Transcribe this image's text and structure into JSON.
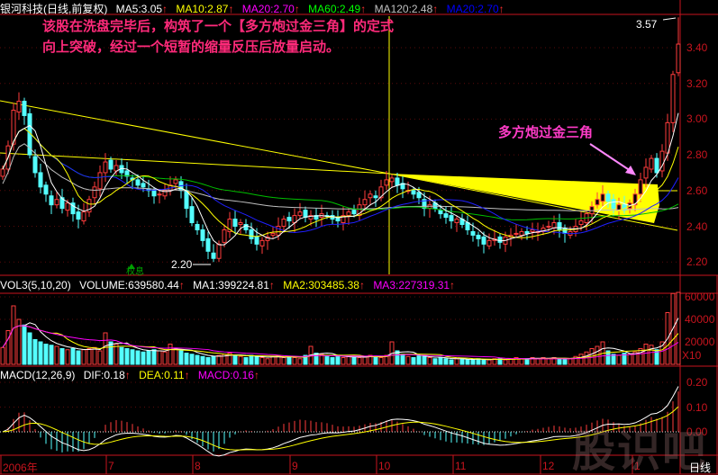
{
  "header": {
    "title": "银河科技(日线,前复权)",
    "ma": [
      {
        "label": "MA5:3.05",
        "color": "#ffffff"
      },
      {
        "label": "MA10:2.87",
        "color": "#ffff00"
      },
      {
        "label": "MA20:2.70",
        "color": "#ff00ff"
      },
      {
        "label": "MA60:2.49",
        "color": "#00ff00"
      },
      {
        "label": "MA120:2.48",
        "color": "#c0c0c0"
      },
      {
        "label": "MA20:2.70",
        "color": "#0000ff"
      }
    ]
  },
  "annotations": {
    "note": "该股在洗盘完毕后，构筑了一个【多方炮过金三角】的定式向上突破，经过一个短暂的缩量反压后放量启动。",
    "pattern_label": "多方炮过金三角",
    "high_label": "3.57",
    "low_label": "2.20",
    "ex_rights_label": "权息",
    "watermark": "股识吧",
    "period": "日线"
  },
  "volume_legend": {
    "title": "VOL3(5,10,20)",
    "items": [
      {
        "label": "VOLUME:639580.44",
        "color": "#ffffff"
      },
      {
        "label": "MA1:399224.81",
        "color": "#ffffff"
      },
      {
        "label": "MA2:303485.38",
        "color": "#ffff00"
      },
      {
        "label": "MA3:227319.31",
        "color": "#ff00ff"
      }
    ]
  },
  "macd_legend": {
    "title": "MACD(12,26,9)",
    "items": [
      {
        "label": "DIF:0.18",
        "color": "#ffffff"
      },
      {
        "label": "DEA:0.11",
        "color": "#ffff00"
      },
      {
        "label": "MACD:0.16",
        "color": "#ff00ff"
      }
    ]
  },
  "colors": {
    "up": "#ff3c3c",
    "down": "#54ffff",
    "axis": "#c8141e",
    "triangle": "#ffff00",
    "note": "#ff2a7a"
  },
  "chart_data": [
    {
      "type": "candlestick",
      "title": "银河科技(日线,前复权)",
      "ylim": [
        2.15,
        3.6
      ],
      "yticks": [
        "3.40",
        "3.20",
        "3.00",
        "2.80",
        "2.60",
        "2.40",
        "2.20"
      ],
      "xticks": [
        "2006年",
        "7",
        "8",
        "9",
        "10",
        "11",
        "12",
        "1"
      ],
      "high": 3.57,
      "low": 2.2,
      "close": [
        2.72,
        2.85,
        3.05,
        3.1,
        3.02,
        2.8,
        2.7,
        2.62,
        2.58,
        2.52,
        2.55,
        2.5,
        2.53,
        2.47,
        2.44,
        2.48,
        2.55,
        2.62,
        2.7,
        2.76,
        2.72,
        2.74,
        2.7,
        2.68,
        2.66,
        2.63,
        2.62,
        2.6,
        2.57,
        2.58,
        2.6,
        2.63,
        2.66,
        2.6,
        2.5,
        2.42,
        2.38,
        2.32,
        2.26,
        2.22,
        2.3,
        2.38,
        2.44,
        2.4,
        2.42,
        2.38,
        2.33,
        2.3,
        2.32,
        2.34,
        2.36,
        2.4,
        2.44,
        2.43,
        2.46,
        2.48,
        2.45,
        2.46,
        2.44,
        2.47,
        2.46,
        2.44,
        2.43,
        2.46,
        2.48,
        2.47,
        2.52,
        2.55,
        2.58,
        2.56,
        2.62,
        2.66,
        2.67,
        2.63,
        2.61,
        2.6,
        2.58,
        2.56,
        2.5,
        2.52,
        2.5,
        2.47,
        2.45,
        2.43,
        2.44,
        2.41,
        2.38,
        2.35,
        2.33,
        2.3,
        2.32,
        2.33,
        2.31,
        2.34,
        2.35,
        2.36,
        2.37,
        2.36,
        2.38,
        2.37,
        2.39,
        2.4,
        2.42,
        2.38,
        2.36,
        2.37,
        2.4,
        2.43,
        2.47,
        2.51,
        2.55,
        2.58,
        2.54,
        2.5,
        2.52,
        2.49,
        2.53,
        2.58,
        2.66,
        2.73,
        2.78,
        2.7,
        2.82,
        2.98,
        3.25,
        3.42
      ]
    },
    {
      "type": "bar",
      "title": "VOL3(5,10,20)",
      "yticks": [
        "60000",
        "40000",
        "20000"
      ],
      "scale_label": "X10",
      "values": [
        15000,
        30000,
        52000,
        40000,
        35000,
        28000,
        22000,
        20000,
        18000,
        17000,
        16000,
        14000,
        13000,
        14000,
        12000,
        13000,
        14000,
        15000,
        12000,
        28000,
        20000,
        18000,
        15000,
        14000,
        13000,
        12000,
        11000,
        12000,
        13000,
        12000,
        11000,
        18000,
        14000,
        12000,
        10000,
        9000,
        8000,
        7000,
        6000,
        7000,
        8000,
        9000,
        10000,
        8000,
        7000,
        6000,
        8000,
        7000,
        6000,
        5000,
        7000,
        8000,
        6000,
        7000,
        6000,
        5000,
        8000,
        16000,
        10000,
        9000,
        7000,
        6000,
        8000,
        6000,
        7000,
        6000,
        6000,
        7000,
        8000,
        7000,
        6000,
        8000,
        20000,
        12000,
        9000,
        7000,
        6000,
        8000,
        7000,
        6000,
        5000,
        6000,
        5000,
        4000,
        5000,
        5000,
        4000,
        4000,
        5000,
        4000,
        4000,
        5000,
        5000,
        4000,
        5000,
        6000,
        5000,
        5000,
        6000,
        5000,
        6000,
        5000,
        6000,
        5000,
        5000,
        5000,
        7000,
        9000,
        11000,
        14000,
        16000,
        20000,
        12000,
        9000,
        8000,
        10000,
        9000,
        11000,
        14000,
        18000,
        17000,
        13000,
        20000,
        46000,
        63000,
        64000
      ]
    },
    {
      "type": "line",
      "title": "MACD(12,26,9)",
      "yticks": [
        "0.20",
        "0.10",
        "0.00"
      ],
      "series": [
        {
          "name": "DIF"
        },
        {
          "name": "DEA"
        },
        {
          "name": "MACD"
        }
      ]
    }
  ]
}
